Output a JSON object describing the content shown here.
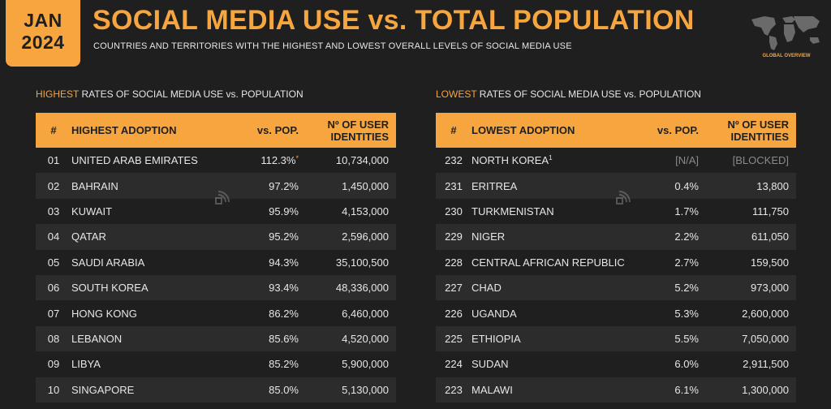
{
  "header": {
    "date_line1": "JAN",
    "date_line2": "2024",
    "title": "SOCIAL MEDIA USE vs. TOTAL POPULATION",
    "subtitle": "COUNTRIES AND TERRITORIES WITH THE HIGHEST AND LOWEST OVERALL LEVELS OF SOCIAL MEDIA USE",
    "map_label": "GLOBAL OVERVIEW",
    "map_icon": "world-map-icon"
  },
  "colors": {
    "accent": "#f7a53e",
    "background": "#1f1f1f",
    "row_alt": "#2c2c2c"
  },
  "chart_data": [
    {
      "type": "table",
      "section_label_highlight": "HIGHEST",
      "section_label_rest": " RATES OF SOCIAL MEDIA USE vs. POPULATION",
      "columns": [
        "#",
        "HIGHEST ADOPTION",
        "vs. POP.",
        "Nº OF USER IDENTITIES"
      ],
      "rows": [
        {
          "rank": "01",
          "country": "UNITED ARAB EMIRATES",
          "pct": "112.3%",
          "mark": "*",
          "users": "10,734,000"
        },
        {
          "rank": "02",
          "country": "BAHRAIN",
          "pct": "97.2%",
          "mark": "",
          "users": "1,450,000"
        },
        {
          "rank": "03",
          "country": "KUWAIT",
          "pct": "95.9%",
          "mark": "",
          "users": "4,153,000"
        },
        {
          "rank": "04",
          "country": "QATAR",
          "pct": "95.2%",
          "mark": "",
          "users": "2,596,000"
        },
        {
          "rank": "05",
          "country": "SAUDI ARABIA",
          "pct": "94.3%",
          "mark": "",
          "users": "35,100,500"
        },
        {
          "rank": "06",
          "country": "SOUTH KOREA",
          "pct": "93.4%",
          "mark": "",
          "users": "48,336,000"
        },
        {
          "rank": "07",
          "country": "HONG KONG",
          "pct": "86.2%",
          "mark": "",
          "users": "6,460,000"
        },
        {
          "rank": "08",
          "country": "LEBANON",
          "pct": "85.6%",
          "mark": "",
          "users": "4,520,000"
        },
        {
          "rank": "09",
          "country": "LIBYA",
          "pct": "85.2%",
          "mark": "",
          "users": "5,900,000"
        },
        {
          "rank": "10",
          "country": "SINGAPORE",
          "pct": "85.0%",
          "mark": "",
          "users": "5,130,000"
        }
      ]
    },
    {
      "type": "table",
      "section_label_highlight": "LOWEST",
      "section_label_rest": " RATES OF SOCIAL MEDIA USE vs. POPULATION",
      "columns": [
        "#",
        "LOWEST ADOPTION",
        "vs. POP.",
        "Nº OF USER IDENTITIES"
      ],
      "rows": [
        {
          "rank": "232",
          "country": "NORTH KOREA",
          "mark": "1",
          "pct": "[N/A]",
          "users": "[BLOCKED]"
        },
        {
          "rank": "231",
          "country": "ERITREA",
          "mark": "",
          "pct": "0.4%",
          "users": "13,800"
        },
        {
          "rank": "230",
          "country": "TURKMENISTAN",
          "mark": "",
          "pct": "1.7%",
          "users": "111,750"
        },
        {
          "rank": "229",
          "country": "NIGER",
          "mark": "",
          "pct": "2.2%",
          "users": "611,050"
        },
        {
          "rank": "228",
          "country": "CENTRAL AFRICAN REPUBLIC",
          "mark": "",
          "pct": "2.7%",
          "users": "159,500"
        },
        {
          "rank": "227",
          "country": "CHAD",
          "mark": "",
          "pct": "5.2%",
          "users": "973,000"
        },
        {
          "rank": "226",
          "country": "UGANDA",
          "mark": "",
          "pct": "5.3%",
          "users": "2,600,000"
        },
        {
          "rank": "225",
          "country": "ETHIOPIA",
          "mark": "",
          "pct": "5.5%",
          "users": "7,050,000"
        },
        {
          "rank": "224",
          "country": "SUDAN",
          "mark": "",
          "pct": "6.0%",
          "users": "2,911,500"
        },
        {
          "rank": "223",
          "country": "MALAWI",
          "mark": "",
          "pct": "6.1%",
          "users": "1,300,000"
        }
      ]
    }
  ]
}
